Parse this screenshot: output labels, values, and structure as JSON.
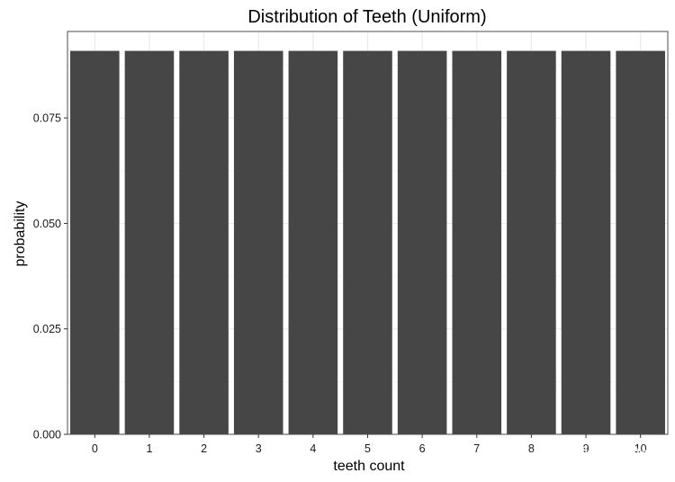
{
  "chart_data": {
    "type": "bar",
    "title": "Distribution of Teeth (Uniform)",
    "xlabel": "teeth count",
    "ylabel": "probability",
    "categories": [
      "0",
      "1",
      "2",
      "3",
      "4",
      "5",
      "6",
      "7",
      "8",
      "9",
      "10"
    ],
    "values": [
      0.0909,
      0.0909,
      0.0909,
      0.0909,
      0.0909,
      0.0909,
      0.0909,
      0.0909,
      0.0909,
      0.0909,
      0.0909
    ],
    "yticks": [
      "0.000",
      "0.025",
      "0.050",
      "0.075"
    ],
    "ytick_values": [
      0,
      0.025,
      0.05,
      0.075
    ],
    "ylim": [
      0,
      0.0955
    ],
    "grid": true,
    "colors": {
      "bar": "#464646",
      "panel_border": "#4d4d4d",
      "grid_major": "#ebebeb",
      "grid_minor": "#f5f5f5"
    }
  },
  "watermark": "知乎 @xtdx"
}
